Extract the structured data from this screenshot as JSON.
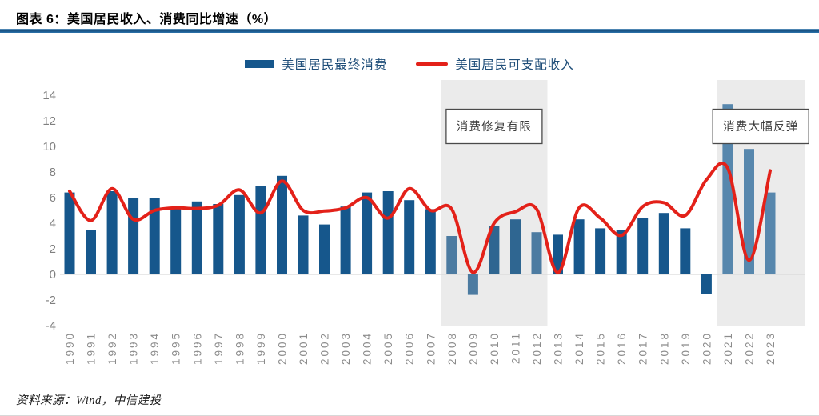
{
  "header": {
    "title": "图表 6：美国居民收入、消费同比增速（%）"
  },
  "legend": [
    {
      "label": "美国居民最终消费",
      "type": "bar",
      "color": "#16578c"
    },
    {
      "label": "美国居民可支配收入",
      "type": "line",
      "color": "#e32119"
    }
  ],
  "footer": {
    "source": "资料来源：Wind，中信建投"
  },
  "colors": {
    "bar_default": "#16578c",
    "line_red": "#e32119",
    "band_fill": "#ebebeb",
    "grid_line": "#d9d9d9",
    "y_label": "#7f7f7f",
    "x_label": "#8c8c8c",
    "annotation_text": "#3d3d3d",
    "annotation_border": "#4a4a4a"
  },
  "chart_data": {
    "type": "bar+line",
    "title": "美国居民收入、消费同比增速（%）",
    "categories": [
      "1990",
      "1991",
      "1992",
      "1993",
      "1994",
      "1995",
      "1996",
      "1997",
      "1998",
      "1999",
      "2000",
      "2001",
      "2002",
      "2003",
      "2004",
      "2005",
      "2006",
      "2007",
      "2008",
      "2009",
      "2010",
      "2011",
      "2012",
      "2013",
      "2014",
      "2015",
      "2016",
      "2017",
      "2018",
      "2019",
      "2020",
      "2021",
      "2022",
      "2023"
    ],
    "series": [
      {
        "name": "美国居民最终消费",
        "type": "bar",
        "color": "#16578c",
        "values": [
          6.4,
          3.5,
          6.5,
          6.0,
          6.0,
          5.2,
          5.7,
          5.5,
          6.2,
          6.9,
          7.7,
          4.6,
          3.9,
          5.3,
          6.4,
          6.5,
          5.8,
          5.1,
          3.0,
          -1.6,
          3.8,
          4.3,
          3.3,
          3.1,
          4.3,
          3.6,
          3.5,
          4.4,
          4.8,
          3.6,
          -1.5,
          13.3,
          9.8,
          6.4
        ]
      },
      {
        "name": "美国居民可支配收入",
        "type": "line",
        "color": "#e32119",
        "values": [
          6.5,
          4.2,
          6.7,
          4.3,
          5.0,
          5.2,
          5.15,
          5.4,
          6.6,
          4.8,
          7.3,
          5.0,
          4.95,
          5.2,
          6.0,
          4.4,
          6.7,
          5.0,
          5.1,
          0.15,
          4.0,
          4.9,
          5.1,
          0.15,
          5.2,
          4.4,
          3.05,
          5.3,
          5.6,
          4.6,
          7.4,
          8.3,
          1.1,
          8.1
        ]
      }
    ],
    "ylim": [
      -4,
      14
    ],
    "yticks": [
      14,
      12,
      10,
      8,
      6,
      4,
      2,
      0,
      -2,
      -4
    ],
    "grid": "zero-line-only",
    "legend_position": "top",
    "highlight_bands": [
      {
        "from": "2008",
        "to": "2012",
        "annotation": "消费修复有限"
      },
      {
        "from": "2021",
        "to": "2023",
        "annotation": "消费大幅反弹"
      }
    ],
    "bar_color_overrides": {
      "2008": "#4c7ba1",
      "2009": "#4c7ba1",
      "2010": "#2f6691",
      "2011": "#2f6691",
      "2012": "#4c7ba1",
      "2021": "#5787ad",
      "2022": "#5787ad",
      "2023": "#5787ad"
    }
  }
}
